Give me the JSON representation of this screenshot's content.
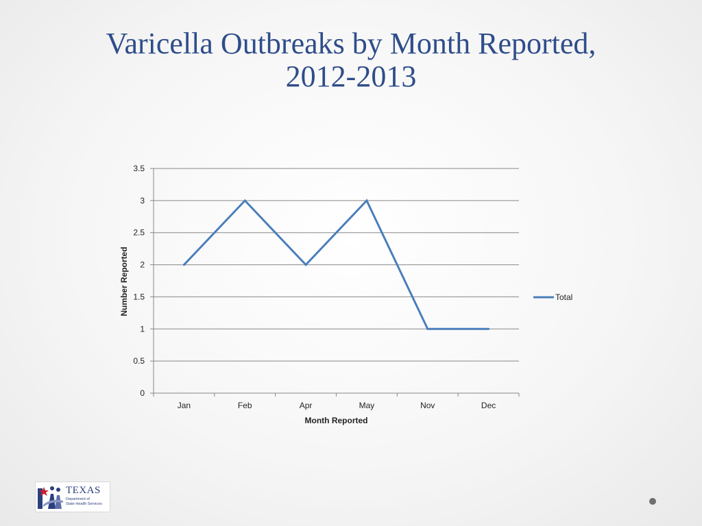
{
  "slide": {
    "title_line1": "Varicella Outbreaks by Month Reported,",
    "title_line2": "2012-2013"
  },
  "logo": {
    "name": "TEXAS",
    "subtitle_line1": "Department of",
    "subtitle_line2": "State Health Services"
  },
  "colors": {
    "title": "#2f4d8a",
    "series": "#4a7ebb",
    "grid": "#878787"
  },
  "chart_data": {
    "type": "line",
    "title": "",
    "categories": [
      "Jan",
      "Feb",
      "Apr",
      "May",
      "Nov",
      "Dec"
    ],
    "series": [
      {
        "name": "Total",
        "values": [
          2,
          3,
          2,
          3,
          1,
          1
        ]
      }
    ],
    "xlabel": "Month Reported",
    "ylabel": "Number Reported",
    "ylim": [
      0,
      3.5
    ],
    "yticks": [
      "0",
      "0.5",
      "1",
      "1.5",
      "2",
      "2.5",
      "3",
      "3.5"
    ],
    "grid": true,
    "legend": "right"
  }
}
